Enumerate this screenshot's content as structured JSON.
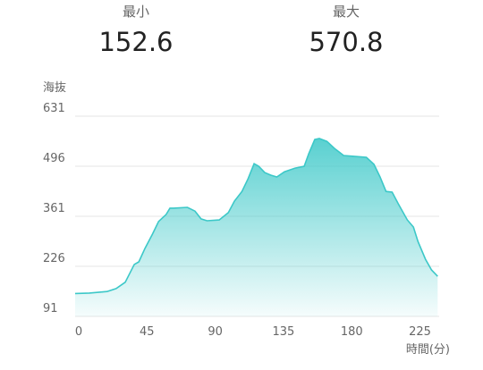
{
  "stats": [
    {
      "label": "最小",
      "value": 152.6
    },
    {
      "label": "最大",
      "value": 570.8
    }
  ],
  "chart_data": {
    "type": "area",
    "y_label": "海抜",
    "x_label": "時間(分)",
    "color": "#3cc8c8",
    "x": [
      0,
      9.4,
      21,
      27,
      33,
      39,
      42,
      46,
      51,
      55,
      60,
      62.5,
      65,
      74,
      79,
      83,
      87,
      95,
      101,
      105,
      110,
      114,
      118,
      121,
      125,
      129,
      133,
      138,
      145,
      151,
      154,
      158,
      161,
      166,
      171,
      177,
      183,
      192,
      197,
      201,
      205,
      209,
      213,
      219,
      223,
      226,
      231,
      235,
      239
    ],
    "values": [
      152.6,
      154,
      158,
      166,
      183,
      231,
      238,
      274,
      313,
      347,
      366,
      383,
      383,
      385,
      375,
      354,
      349,
      351,
      371,
      402,
      428,
      462,
      503,
      496,
      479,
      472,
      467,
      481,
      491,
      496,
      530,
      568,
      570.8,
      563,
      544,
      525,
      523,
      520,
      501,
      467,
      428,
      426,
      395,
      351,
      332,
      293,
      245,
      216,
      199
    ],
    "xlim": [
      0,
      240
    ],
    "xticks": [
      0,
      45,
      90,
      135,
      180,
      225
    ],
    "ylim": [
      91,
      631
    ],
    "yticks": [
      91,
      226,
      361,
      496,
      631
    ],
    "grid": true
  }
}
